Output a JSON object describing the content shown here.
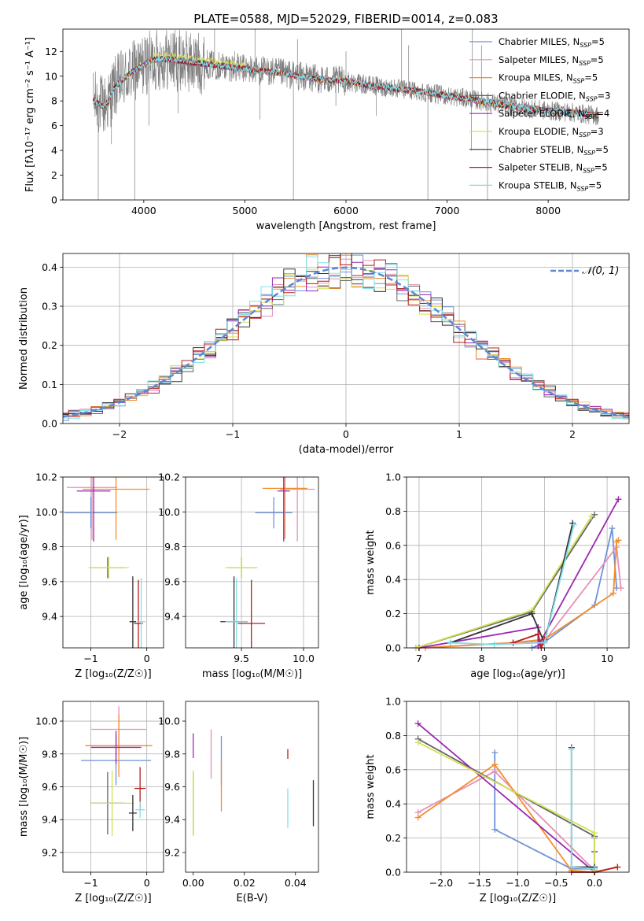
{
  "figure": {
    "title": "PLATE=0588, MJD=52029, FIBERID=0014, z=0.083"
  },
  "legend_spec": [
    {
      "text": "Chabrier MILES, N",
      "sub": "SSP",
      "tail": "=5",
      "color": "#6f92d8"
    },
    {
      "text": "Salpeter MILES, N",
      "sub": "SSP",
      "tail": "=5",
      "color": "#e58fb9"
    },
    {
      "text": "Kroupa MILES, N",
      "sub": "SSP",
      "tail": "=5",
      "color": "#f28e2b"
    },
    {
      "text": "Chabrier ELODIE, N",
      "sub": "SSP",
      "tail": "=3",
      "color": "#666666"
    },
    {
      "text": "Salpeter ELODIE, N",
      "sub": "SSP",
      "tail": "=4",
      "color": "#9c27b0"
    },
    {
      "text": "Kroupa ELODIE, N",
      "sub": "SSP",
      "tail": "=3",
      "color": "#d4e157"
    },
    {
      "text": "Chabrier STELIB, N",
      "sub": "SSP",
      "tail": "=5",
      "color": "#333333"
    },
    {
      "text": "Salpeter STELIB, N",
      "sub": "SSP",
      "tail": "=5",
      "color": "#b71c1c"
    },
    {
      "text": "Kroupa STELIB, N",
      "sub": "SSP",
      "tail": "=5",
      "color": "#80deea"
    }
  ],
  "normal_label": "𝒩(0, 1)",
  "chart_data": [
    {
      "id": "spectrum",
      "type": "line",
      "xlabel": "wavelength [Angstrom, rest frame]",
      "ylabel": "Flux [fλ10⁻¹⁷ erg cm⁻² s⁻¹ A⁻¹]",
      "xlim": [
        3200,
        8800
      ],
      "ylim": [
        0,
        13.8
      ],
      "xticks": [
        4000,
        5000,
        6000,
        7000,
        8000
      ],
      "yticks": [
        0,
        2,
        4,
        6,
        8,
        10,
        12
      ],
      "legend": "top-right",
      "continuum_x": [
        3500,
        3600,
        3650,
        3700,
        3800,
        3900,
        4000,
        4100,
        4200,
        4400,
        4600,
        4800,
        5000,
        5200,
        5400,
        5600,
        5800,
        6000,
        6200,
        6400,
        6600,
        6800,
        7000,
        7200,
        7400,
        7600,
        7800,
        8000,
        8200,
        8400,
        8500
      ],
      "continuum_y": [
        8.0,
        7.6,
        7.9,
        9.0,
        9.8,
        10.4,
        10.9,
        11.3,
        11.4,
        11.2,
        11.0,
        10.8,
        10.6,
        10.4,
        10.2,
        9.9,
        9.7,
        9.6,
        9.3,
        9.1,
        8.9,
        8.7,
        8.4,
        8.2,
        7.9,
        7.6,
        7.4,
        7.2,
        7.1,
        6.9,
        6.8
      ],
      "dips": [
        {
          "x": 3550,
          "y": 0
        },
        {
          "x": 3680,
          "y": 4.5
        },
        {
          "x": 3910,
          "y": 0
        },
        {
          "x": 4050,
          "y": 6.0
        },
        {
          "x": 4340,
          "y": 7.0
        },
        {
          "x": 5150,
          "y": 6.5
        },
        {
          "x": 5480,
          "y": 0
        },
        {
          "x": 5900,
          "y": 7.6
        },
        {
          "x": 6300,
          "y": 6.8
        },
        {
          "x": 6810,
          "y": 0
        },
        {
          "x": 7240,
          "y": 4.0
        },
        {
          "x": 7400,
          "y": 0
        }
      ],
      "spikes": [
        {
          "x": 4700,
          "y": 13.8
        },
        {
          "x": 4900,
          "y": 12.0
        },
        {
          "x": 5100,
          "y": 13.8
        },
        {
          "x": 5520,
          "y": 13.0
        },
        {
          "x": 6000,
          "y": 12.0
        },
        {
          "x": 6550,
          "y": 13.8
        },
        {
          "x": 6620,
          "y": 12.5
        },
        {
          "x": 7250,
          "y": 13.8
        },
        {
          "x": 7340,
          "y": 12.5
        }
      ]
    },
    {
      "id": "residuals",
      "type": "line",
      "xlabel": "(data-model)/error",
      "ylabel": "Normed distribution",
      "xlim": [
        -2.5,
        2.5
      ],
      "ylim": [
        0,
        0.435
      ],
      "xticks": [
        -2,
        -1,
        0,
        1,
        2
      ],
      "yticks": [
        0.0,
        0.1,
        0.2,
        0.3,
        0.4
      ],
      "legend": "top-right",
      "bin_width": 0.1,
      "normal_curve": {
        "mu": 0,
        "sigma": 1
      }
    },
    {
      "id": "age_vs_Z",
      "type": "scatter",
      "xlabel": "Z [log₁₀(Z/Z☉)]",
      "ylabel": "age  [log₁₀(age/yr)]",
      "xlim": [
        -1.5,
        0.3
      ],
      "ylim": [
        9.22,
        10.2
      ],
      "xticks": [
        -1,
        0
      ],
      "yticks": [
        9.4,
        9.6,
        9.8,
        10.0,
        10.2
      ],
      "points": [
        {
          "model": 0,
          "x": -1.0,
          "xe": 0.95,
          "y": 9.995,
          "ye": 0.18
        },
        {
          "model": 1,
          "x": -0.98,
          "xe": 0.9,
          "y": 10.14,
          "ye": 0.6
        },
        {
          "model": 2,
          "x": -0.55,
          "xe": 1.2,
          "y": 10.13,
          "ye": 0.58
        },
        {
          "model": 3,
          "x": -0.7,
          "xe": 0.6,
          "y": 9.68,
          "ye": 0.12
        },
        {
          "model": 4,
          "x": -0.95,
          "xe": 0.6,
          "y": 10.12,
          "ye": 0.58
        },
        {
          "model": 5,
          "x": -0.68,
          "xe": 0.72,
          "y": 9.68,
          "ye": 0.13
        },
        {
          "model": 6,
          "x": -0.25,
          "xe": 0.12,
          "y": 9.37,
          "ye": 0.52
        },
        {
          "model": 7,
          "x": -0.15,
          "xe": 0.16,
          "y": 9.36,
          "ye": 0.5
        },
        {
          "model": 8,
          "x": -0.1,
          "xe": 0.15,
          "y": 9.37,
          "ye": 0.5
        }
      ]
    },
    {
      "id": "age_vs_mass",
      "type": "scatter",
      "xlabel": "mass [log₁₀(M/M☉)]",
      "ylabel": "",
      "xlim": [
        9.05,
        10.12
      ],
      "ylim": [
        9.22,
        10.2
      ],
      "xticks": [
        9.5,
        10.0
      ],
      "yticks": [
        9.4,
        9.6,
        9.8,
        10.0,
        10.2
      ],
      "points": [
        {
          "model": 0,
          "x": 9.76,
          "xe": 0.3,
          "y": 9.995,
          "ye": 0.18
        },
        {
          "model": 1,
          "x": 9.95,
          "xe": 0.28,
          "y": 10.13,
          "ye": 0.6
        },
        {
          "model": 2,
          "x": 9.85,
          "xe": 0.36,
          "y": 10.135,
          "ye": 0.58
        },
        {
          "model": 3,
          "x": 9.5,
          "xe": 0.22,
          "y": 9.68,
          "ye": 0.12
        },
        {
          "model": 4,
          "x": 9.84,
          "xe": 0.1,
          "y": 10.12,
          "ye": 0.58
        },
        {
          "model": 5,
          "x": 9.5,
          "xe": 0.26,
          "y": 9.68,
          "ye": 0.13
        },
        {
          "model": 6,
          "x": 9.44,
          "xe": 0.22,
          "y": 9.37,
          "ye": 0.52
        },
        {
          "model": 7,
          "x": 9.58,
          "xe": 0.22,
          "y": 9.36,
          "ye": 0.5
        },
        {
          "model": 8,
          "x": 9.46,
          "xe": 0.18,
          "y": 9.37,
          "ye": 0.5
        }
      ]
    },
    {
      "id": "weight_vs_age",
      "type": "line",
      "xlabel": "age  [log₁₀(age/yr)]",
      "ylabel": "mass weight",
      "xlim": [
        6.8,
        10.35
      ],
      "ylim": [
        0,
        1.0
      ],
      "xticks": [
        7,
        8,
        9,
        10
      ],
      "yticks": [
        0.0,
        0.2,
        0.4,
        0.6,
        0.8,
        1.0
      ],
      "series": [
        {
          "model": 0,
          "x": [
            8.8,
            8.95,
            9.8,
            10.08,
            10.15
          ],
          "y": [
            0.0,
            0.02,
            0.25,
            0.7,
            0.35
          ]
        },
        {
          "model": 1,
          "x": [
            7.0,
            8.5,
            9.0,
            10.15,
            10.22
          ],
          "y": [
            0.0,
            0.03,
            0.04,
            0.59,
            0.35
          ]
        },
        {
          "model": 2,
          "x": [
            7.1,
            8.5,
            9.0,
            10.1,
            10.15,
            10.18
          ],
          "y": [
            0.0,
            0.03,
            0.05,
            0.32,
            0.62,
            0.63
          ]
        },
        {
          "model": 3,
          "x": [
            6.95,
            8.8,
            9.8
          ],
          "y": [
            0.0,
            0.21,
            0.78
          ]
        },
        {
          "model": 4,
          "x": [
            7.0,
            8.9,
            8.9,
            10.18
          ],
          "y": [
            0.0,
            0.12,
            0.01,
            0.87
          ]
        },
        {
          "model": 5,
          "x": [
            6.95,
            8.8,
            9.75
          ],
          "y": [
            0.0,
            0.22,
            0.77
          ]
        },
        {
          "model": 6,
          "x": [
            7.5,
            8.8,
            9.0,
            9.45
          ],
          "y": [
            0.03,
            0.2,
            0.03,
            0.73
          ]
        },
        {
          "model": 7,
          "x": [
            8.5,
            8.9,
            8.95,
            9.0
          ],
          "y": [
            0.03,
            0.08,
            0.0,
            0.05
          ]
        },
        {
          "model": 8,
          "x": [
            7.5,
            8.2,
            9.0,
            9.47
          ],
          "y": [
            0.03,
            0.02,
            0.03,
            0.72
          ]
        }
      ]
    },
    {
      "id": "mass_vs_Z",
      "type": "scatter",
      "xlabel": "Z [log₁₀(Z/Z☉)]",
      "ylabel": "mass [log₁₀(M/M☉)]",
      "xlim": [
        -1.5,
        0.3
      ],
      "ylim": [
        9.08,
        10.12
      ],
      "xticks": [
        -1,
        0
      ],
      "yticks": [
        9.2,
        9.4,
        9.6,
        9.8,
        10.0
      ],
      "points": [
        {
          "model": 0,
          "x": -0.55,
          "xe": 1.25,
          "y": 9.76,
          "ye": 0.3
        },
        {
          "model": 1,
          "x": -0.5,
          "xe": 0.98,
          "y": 9.95,
          "ye": 0.28
        },
        {
          "model": 2,
          "x": -0.5,
          "xe": 1.2,
          "y": 9.85,
          "ye": 0.38
        },
        {
          "model": 3,
          "x": -0.7,
          "xe": 0.6,
          "y": 9.5,
          "ye": 0.38
        },
        {
          "model": 4,
          "x": -0.55,
          "xe": 0.9,
          "y": 9.84,
          "ye": 0.2
        },
        {
          "model": 5,
          "x": -0.62,
          "xe": 0.78,
          "y": 9.5,
          "ye": 0.4
        },
        {
          "model": 6,
          "x": -0.25,
          "xe": 0.14,
          "y": 9.44,
          "ye": 0.22
        },
        {
          "model": 7,
          "x": -0.12,
          "xe": 0.2,
          "y": 9.59,
          "ye": 0.26
        },
        {
          "model": 8,
          "x": -0.12,
          "xe": 0.17,
          "y": 9.46,
          "ye": 0.1
        }
      ]
    },
    {
      "id": "mass_vs_ebv",
      "type": "scatter",
      "xlabel": "E(B-V)",
      "ylabel": "",
      "xlim": [
        -0.003,
        0.049
      ],
      "ylim": [
        9.08,
        10.12
      ],
      "xticks": [
        0.0,
        0.02,
        0.04
      ],
      "yticks": [
        9.2,
        9.4,
        9.6,
        9.8,
        10.0
      ],
      "points": [
        {
          "model": 0,
          "x": 0.011,
          "y": 9.76,
          "ye": 0.3
        },
        {
          "model": 1,
          "x": 0.007,
          "y": 9.8,
          "ye": 0.3
        },
        {
          "model": 2,
          "x": 0.011,
          "y": 9.6,
          "ye": 0.3
        },
        {
          "model": 3,
          "x": 0.0,
          "y": 9.5,
          "ye": 0.38
        },
        {
          "model": 4,
          "x": 0.0,
          "y": 9.85,
          "ye": 0.15
        },
        {
          "model": 5,
          "x": 0.0,
          "y": 9.5,
          "ye": 0.4
        },
        {
          "model": 6,
          "x": 0.047,
          "y": 9.5,
          "ye": 0.28
        },
        {
          "model": 7,
          "x": 0.037,
          "y": 9.8,
          "ye": 0.06
        },
        {
          "model": 8,
          "x": 0.037,
          "y": 9.47,
          "ye": 0.24
        }
      ]
    },
    {
      "id": "weight_vs_Z",
      "type": "line",
      "xlabel": "Z [log₁₀(Z/Z☉)]",
      "ylabel": "mass weight",
      "xlim": [
        -2.45,
        0.45
      ],
      "ylim": [
        0,
        1.0
      ],
      "xticks": [
        -2.0,
        -1.5,
        -1.0,
        -0.5,
        0.0
      ],
      "yticks": [
        0.0,
        0.2,
        0.4,
        0.6,
        0.8,
        1.0
      ],
      "series": [
        {
          "model": 0,
          "x": [
            -1.3,
            -1.3,
            -0.3,
            0.0,
            0.0
          ],
          "y": [
            0.7,
            0.25,
            0.02,
            0.02,
            0.2
          ]
        },
        {
          "model": 1,
          "x": [
            -2.3,
            -1.3,
            0.0,
            0.0
          ],
          "y": [
            0.35,
            0.59,
            0.01,
            0.02
          ]
        },
        {
          "model": 2,
          "x": [
            -2.3,
            -1.3,
            -0.3,
            0.0,
            0.3
          ],
          "y": [
            0.32,
            0.63,
            0.01,
            0.0,
            0.03
          ]
        },
        {
          "model": 3,
          "x": [
            -2.3,
            0.0,
            0.0
          ],
          "y": [
            0.78,
            0.21,
            0.01
          ]
        },
        {
          "model": 4,
          "x": [
            -2.3,
            0.0,
            0.0
          ],
          "y": [
            0.87,
            0.0,
            0.12
          ]
        },
        {
          "model": 5,
          "x": [
            -2.3,
            0.0,
            0.0
          ],
          "y": [
            0.76,
            0.23,
            0.01
          ]
        },
        {
          "model": 6,
          "x": [
            -0.3,
            -0.3,
            0.0
          ],
          "y": [
            0.73,
            0.03,
            0.03
          ]
        },
        {
          "model": 7,
          "x": [
            -0.3,
            0.0,
            0.3
          ],
          "y": [
            0.0,
            0.0,
            0.03
          ]
        },
        {
          "model": 8,
          "x": [
            -0.3,
            -0.3,
            0.0
          ],
          "y": [
            0.72,
            0.03,
            0.02
          ]
        }
      ]
    }
  ]
}
